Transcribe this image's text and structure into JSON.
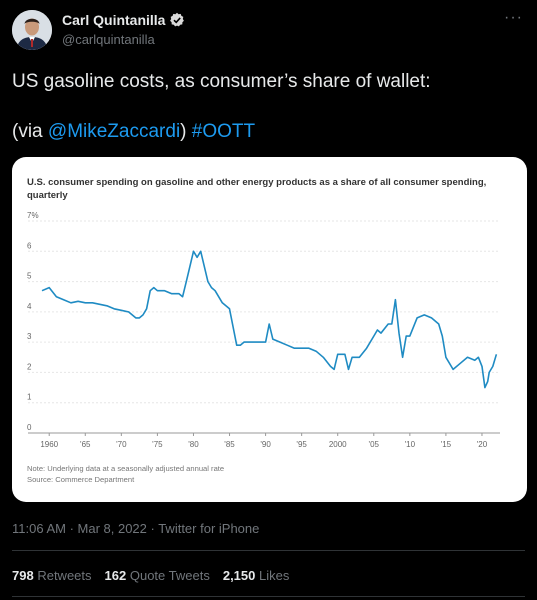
{
  "tweet": {
    "author": {
      "name": "Carl Quintanilla",
      "handle": "@carlquintanilla",
      "verified": true,
      "avatar_icon": "avatar-photo"
    },
    "text_line1": "US gasoline costs, as consumer’s share of wallet:",
    "text_via_prefix": "(via ",
    "text_mention": "@MikeZaccardi",
    "text_via_suffix": ")",
    "text_hashtag": "#OOTT",
    "timestamp": "11:06 AM · Mar 8, 2022 · Twitter for iPhone",
    "stats": {
      "retweets": "798",
      "retweets_label": "Retweets",
      "quotes": "162",
      "quotes_label": "Quote Tweets",
      "likes": "2,150",
      "likes_label": "Likes"
    },
    "colors": {
      "background": "#000000",
      "link": "#1d9bf0",
      "muted": "#71767b",
      "series": "#1f8bc3"
    }
  },
  "chart_data": {
    "type": "line",
    "title": "U.S. consumer spending on gasoline and other energy products as a share of all consumer spending, quarterly",
    "note": "Note: Underlying data at a seasonally adjusted annual rate",
    "source": "Source: Commerce Department",
    "x_tick_labels": [
      "1960",
      "'65",
      "'70",
      "'75",
      "'80",
      "'85",
      "'90",
      "'95",
      "2000",
      "'05",
      "'10",
      "'15",
      "'20"
    ],
    "y_tick_labels": [
      "0",
      "1",
      "2",
      "3",
      "4",
      "5",
      "6",
      "7%"
    ],
    "xlim": [
      1959,
      2022.5
    ],
    "ylim": [
      0,
      7
    ],
    "grid": true,
    "series": [
      {
        "x": [
          1959.0,
          1960.0,
          1961.0,
          1962.0,
          1963.0,
          1964.0,
          1965.0,
          1966.0,
          1967.0,
          1968.0,
          1969.0,
          1970.0,
          1971.0,
          1972.0,
          1972.5,
          1973.0,
          1973.5,
          1974.0,
          1974.5,
          1975.0,
          1976.0,
          1977.0,
          1978.0,
          1978.5,
          1979.0,
          1979.5,
          1980.0,
          1980.5,
          1981.0,
          1981.5,
          1982.0,
          1982.5,
          1983.0,
          1984.0,
          1985.0,
          1985.5,
          1986.0,
          1986.5,
          1987.0,
          1988.0,
          1989.0,
          1990.0,
          1990.5,
          1991.0,
          1992.0,
          1993.0,
          1994.0,
          1995.0,
          1996.0,
          1997.0,
          1998.0,
          1999.0,
          1999.5,
          2000.0,
          2001.0,
          2001.5,
          2002.0,
          2003.0,
          2004.0,
          2005.0,
          2005.5,
          2006.0,
          2007.0,
          2007.5,
          2008.0,
          2008.5,
          2009.0,
          2009.5,
          2010.0,
          2011.0,
          2012.0,
          2013.0,
          2014.0,
          2014.5,
          2015.0,
          2016.0,
          2017.0,
          2018.0,
          2019.0,
          2019.5,
          2020.0,
          2020.4,
          2020.8,
          2021.0,
          2021.5,
          2022.0
        ],
        "y": [
          4.7,
          4.8,
          4.5,
          4.4,
          4.3,
          4.35,
          4.3,
          4.3,
          4.25,
          4.2,
          4.1,
          4.05,
          4.0,
          3.8,
          3.8,
          3.9,
          4.1,
          4.7,
          4.8,
          4.7,
          4.7,
          4.6,
          4.6,
          4.5,
          5.0,
          5.5,
          6.0,
          5.8,
          6.0,
          5.5,
          5.0,
          4.8,
          4.7,
          4.3,
          4.1,
          3.5,
          2.9,
          2.9,
          3.0,
          3.0,
          3.0,
          3.0,
          3.6,
          3.1,
          3.0,
          2.9,
          2.8,
          2.8,
          2.8,
          2.7,
          2.5,
          2.2,
          2.1,
          2.6,
          2.6,
          2.1,
          2.5,
          2.5,
          2.8,
          3.2,
          3.4,
          3.3,
          3.6,
          3.6,
          4.4,
          3.3,
          2.5,
          3.2,
          3.2,
          3.8,
          3.9,
          3.8,
          3.6,
          3.2,
          2.5,
          2.1,
          2.3,
          2.5,
          2.4,
          2.5,
          2.2,
          1.5,
          1.7,
          2.0,
          2.2,
          2.6
        ]
      }
    ]
  }
}
